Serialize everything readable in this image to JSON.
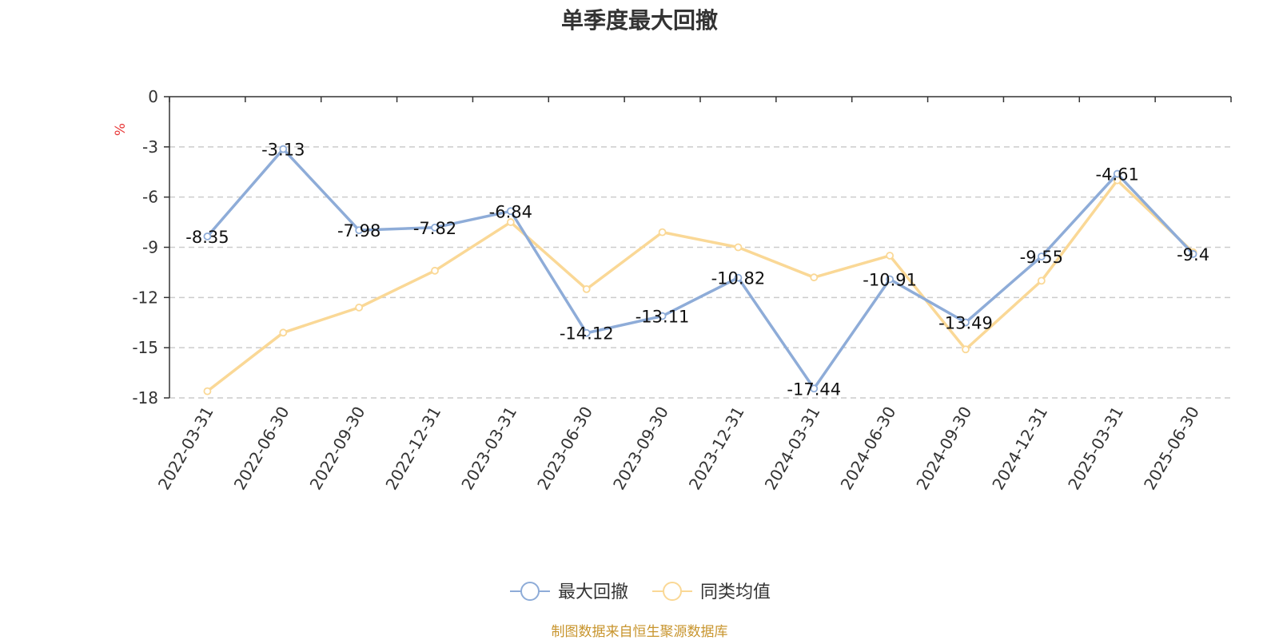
{
  "title": "单季度最大回撤",
  "source": "制图数据来自恒生聚源数据库",
  "chart_data": {
    "type": "line",
    "ylabel": "%",
    "ylim": [
      -18,
      0
    ],
    "yticks": [
      0,
      -3,
      -6,
      -9,
      -12,
      -15,
      -18
    ],
    "grid": true,
    "legend_position": "bottom",
    "categories": [
      "2022-03-31",
      "2022-06-30",
      "2022-09-30",
      "2022-12-31",
      "2023-03-31",
      "2023-06-30",
      "2023-09-30",
      "2023-12-31",
      "2024-03-31",
      "2024-06-30",
      "2024-09-30",
      "2024-12-31",
      "2025-03-31",
      "2025-06-30"
    ],
    "series": [
      {
        "name": "最大回撤",
        "color": "#8eacd8",
        "values": [
          -8.35,
          -3.13,
          -7.98,
          -7.82,
          -6.84,
          -14.12,
          -13.11,
          -10.82,
          -17.44,
          -10.91,
          -13.49,
          -9.55,
          -4.61,
          -9.4
        ],
        "labels": [
          "-8.35",
          "-3.13",
          "-7.98",
          "-7.82",
          "-6.84",
          "-14.12",
          "-13.11",
          "-10.82",
          "-17.44",
          "-10.91",
          "-13.49",
          "-9.55",
          "-4.61",
          "-9.4"
        ]
      },
      {
        "name": "同类均值",
        "color": "#fad896",
        "values": [
          -17.6,
          -14.1,
          -12.6,
          -10.4,
          -7.5,
          -11.5,
          -8.1,
          -9.0,
          -10.8,
          -9.5,
          -15.1,
          -11.0,
          -5.0,
          -9.3
        ]
      }
    ]
  }
}
